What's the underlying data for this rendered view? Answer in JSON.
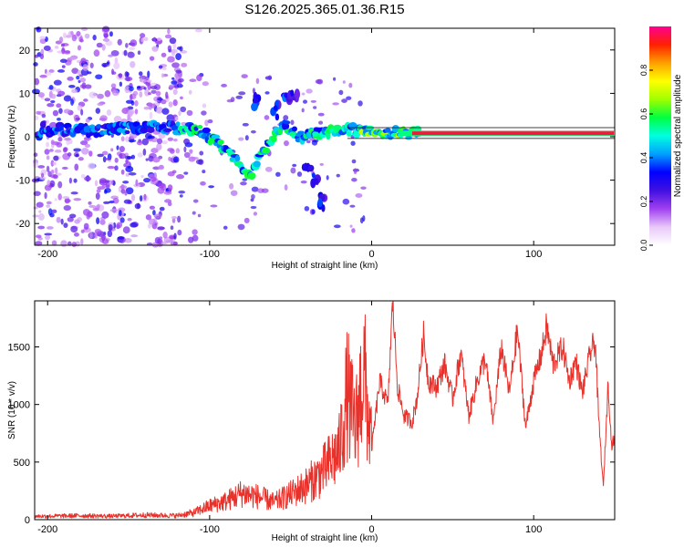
{
  "title": "S126.2025.365.01.36.R15",
  "colors": {
    "snr_line": "#e8312a",
    "axis": "#000000",
    "spectrogram_background": "#ffffff"
  },
  "chart_data": [
    {
      "type": "heatmap",
      "name": "spectrogram",
      "xlabel": "Height of straight line (km)",
      "ylabel": "Frequency (Hz)",
      "xlim": [
        -208,
        150
      ],
      "ylim": [
        -25,
        25
      ],
      "xticks": [
        -200,
        -100,
        0,
        100
      ],
      "xtick_labels": [
        "-200",
        "-100",
        "0",
        "100"
      ],
      "yticks": [
        -20,
        -10,
        0,
        10,
        20
      ],
      "ytick_labels": [
        "-20",
        "-10",
        "0",
        "10",
        "20"
      ],
      "colorbar": {
        "label": "Normalized spectral amplitude",
        "range": [
          0,
          1
        ],
        "ticks": [
          0.0,
          0.2,
          0.4,
          0.6,
          0.8
        ],
        "tick_labels": [
          "0.0",
          "0.2",
          "0.4",
          "0.6",
          "0.8"
        ],
        "colormap": [
          "#ffffff",
          "#e8c8f8",
          "#a040f0",
          "#4010e0",
          "#0000ff",
          "#00a0ff",
          "#00ffe0",
          "#00ff40",
          "#a0ff00",
          "#ffff00",
          "#ffa000",
          "#ff2000",
          "#ff0090"
        ]
      },
      "features": {
        "main_trace": [
          [
            -205,
            1.8
          ],
          [
            -190,
            1.5
          ],
          [
            -170,
            1.5
          ],
          [
            -150,
            2.0
          ],
          [
            -130,
            2.0
          ],
          [
            -115,
            2.0
          ],
          [
            -105,
            1.5
          ],
          [
            -95,
            -1.5
          ],
          [
            -85,
            -4.5
          ],
          [
            -75,
            -9
          ],
          [
            -65,
            -2
          ],
          [
            -55,
            3
          ],
          [
            -45,
            0
          ],
          [
            -30,
            1
          ],
          [
            -15,
            1.5
          ],
          [
            0,
            1.5
          ],
          [
            10,
            1.0
          ],
          [
            25,
            0.8
          ],
          [
            60,
            0.8
          ],
          [
            100,
            0.8
          ],
          [
            150,
            0.8
          ]
        ],
        "steady_line": {
          "x_start": 25,
          "x_end": 150,
          "frequency": 0.8,
          "amplitude": 0.95
        },
        "noise_region_x": [
          -208,
          -118
        ]
      }
    },
    {
      "type": "line",
      "name": "snr",
      "xlabel": "Height of straight line (km)",
      "ylabel": "SNR (10 * v/v)",
      "xlim": [
        -208,
        150
      ],
      "ylim": [
        0,
        1900
      ],
      "xticks": [
        -200,
        -100,
        0,
        100
      ],
      "xtick_labels": [
        "-200",
        "-100",
        "0",
        "100"
      ],
      "yticks": [
        0,
        500,
        1000,
        1500
      ],
      "ytick_labels": [
        "0",
        "500",
        "1000",
        "1500"
      ],
      "series": [
        {
          "name": "SNR",
          "x": [
            -208,
            -200,
            -180,
            -160,
            -140,
            -120,
            -110,
            -100,
            -90,
            -80,
            -70,
            -60,
            -50,
            -40,
            -30,
            -20,
            -15,
            -10,
            -5,
            0,
            5,
            10,
            13,
            16,
            20,
            25,
            28,
            32,
            35,
            40,
            45,
            50,
            55,
            60,
            65,
            70,
            75,
            80,
            85,
            90,
            95,
            100,
            105,
            108,
            112,
            118,
            122,
            126,
            130,
            135,
            138,
            140,
            143,
            146,
            148,
            150
          ],
          "values": [
            30,
            30,
            35,
            30,
            40,
            35,
            60,
            120,
            160,
            230,
            200,
            150,
            220,
            300,
            420,
            600,
            1100,
            780,
            1300,
            620,
            1200,
            1000,
            1900,
            1150,
            900,
            850,
            1050,
            1600,
            1200,
            1150,
            1350,
            1050,
            1450,
            900,
            1200,
            1400,
            850,
            1500,
            1100,
            1650,
            800,
            1200,
            1450,
            1680,
            1350,
            1500,
            1200,
            1380,
            1100,
            1450,
            1550,
            900,
            280,
            1200,
            650,
            700
          ]
        }
      ]
    }
  ]
}
